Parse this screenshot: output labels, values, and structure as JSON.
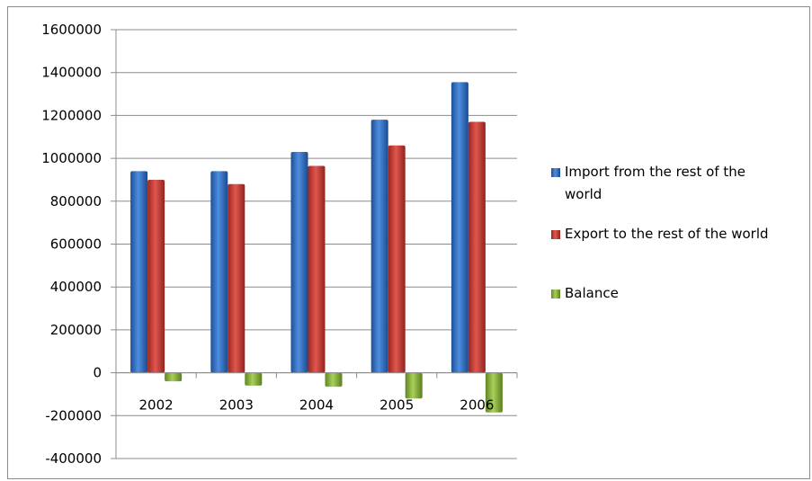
{
  "chart_data": {
    "type": "bar",
    "title": "",
    "xlabel": "",
    "ylabel": "",
    "categories": [
      "2002",
      "2003",
      "2004",
      "2005",
      "2006"
    ],
    "series": [
      {
        "name": "Import from the rest of the world",
        "values": [
          940000,
          940000,
          1030000,
          1180000,
          1355000
        ],
        "color": "#2f74c8"
      },
      {
        "name": "Export to the rest of the world",
        "values": [
          900000,
          880000,
          965000,
          1060000,
          1170000
        ],
        "color": "#cc3a33"
      },
      {
        "name": "Balance",
        "values": [
          -40000,
          -60000,
          -65000,
          -120000,
          -185000
        ],
        "color": "#8fb840"
      }
    ],
    "ylim": [
      -400000,
      1600000
    ],
    "ytick_labels": [
      "1600000",
      "1400000",
      "1200000",
      "1000000",
      "800000",
      "600000",
      "400000",
      "200000",
      "0",
      "-200000",
      "-400000"
    ],
    "grid": true,
    "legend_position": "right"
  }
}
